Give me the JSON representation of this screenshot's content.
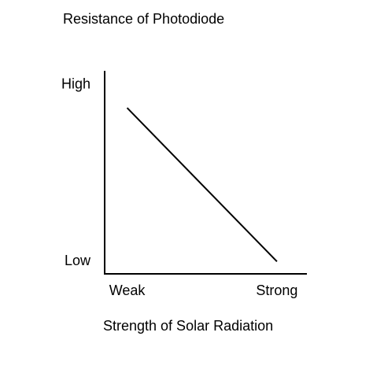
{
  "chart_data": {
    "type": "line",
    "y_label": "Resistance of Photodiode",
    "x_label": "Strength of Solar Radiation",
    "x": [
      0,
      1
    ],
    "series": [
      {
        "color": "#000000",
        "values": [
          0.87,
          0
        ]
      }
    ],
    "xlim": [
      -0.15,
      1.2
    ],
    "xticks": [
      {
        "value": 0,
        "label": "Weak"
      },
      {
        "value": 1,
        "label": "Strong"
      }
    ],
    "ylim": [
      -0.07,
      1.08
    ],
    "yticks": [
      {
        "value": 0,
        "label": "Low"
      },
      {
        "value": 1,
        "label": "High"
      }
    ],
    "grid": false
  }
}
